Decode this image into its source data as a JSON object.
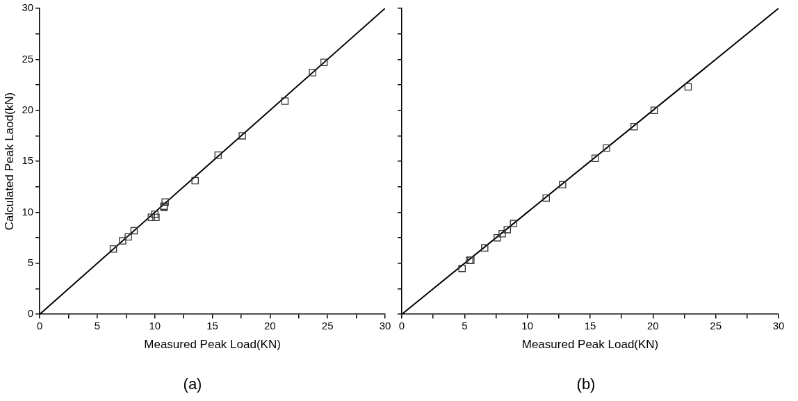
{
  "chart_data": [
    {
      "type": "scatter",
      "title": "(a)",
      "xlabel": "Measured Peak Load(KN)",
      "ylabel": "Calculated Peak Laod(kN)",
      "xlim": [
        0,
        30
      ],
      "ylim": [
        0,
        30
      ],
      "xticks": [
        0,
        {
          "value": 2.5,
          "label": null
        },
        5,
        {
          "value": 7.5,
          "label": null
        },
        10,
        {
          "value": 12.5,
          "label": null
        },
        15,
        {
          "value": 17.5,
          "label": null
        },
        20,
        {
          "value": 22.5,
          "label": null
        },
        25,
        {
          "value": 27.5,
          "label": null
        },
        30
      ],
      "yticks": [
        0,
        {
          "value": 2.5,
          "label": null
        },
        5,
        {
          "value": 7.5,
          "label": null
        },
        10,
        {
          "value": 12.5,
          "label": null
        },
        15,
        {
          "value": 17.5,
          "label": null
        },
        20,
        {
          "value": 22.5,
          "label": null
        },
        25,
        {
          "value": 27.5,
          "label": null
        },
        30
      ],
      "grid": false,
      "legend": false,
      "series": [
        {
          "color": "#333333",
          "marker": "square",
          "x": [
            6.4,
            7.2,
            7.7,
            8.2,
            9.7,
            10,
            10.1,
            10.8,
            10.9,
            10.8,
            13.5,
            15.5,
            17.6,
            21.3,
            23.7,
            24.7
          ],
          "values": [
            6.4,
            7.2,
            7.6,
            8.2,
            9.5,
            9.8,
            9.5,
            10.5,
            11,
            10.6,
            13.1,
            15.6,
            17.5,
            20.9,
            23.7,
            24.7
          ]
        },
        {
          "type": "line",
          "color": "#000000",
          "marker": "none",
          "line_style": "solid",
          "x": [
            0,
            30
          ],
          "values": [
            0,
            30
          ]
        }
      ]
    },
    {
      "type": "scatter",
      "title": "(b)",
      "xlabel": "Measured Peak Load(KN)",
      "xlim": [
        0,
        30
      ],
      "ylim": [
        0,
        30
      ],
      "tick_labels": "x",
      "xticks": [
        0,
        {
          "value": 2.5,
          "label": null
        },
        5,
        {
          "value": 7.5,
          "label": null
        },
        10,
        {
          "value": 12.5,
          "label": null
        },
        15,
        {
          "value": 17.5,
          "label": null
        },
        20,
        {
          "value": 22.5,
          "label": null
        },
        25,
        {
          "value": 27.5,
          "label": null
        },
        30
      ],
      "yticks": [
        0,
        {
          "value": 2.5,
          "label": null
        },
        5,
        {
          "value": 7.5,
          "label": null
        },
        10,
        {
          "value": 12.5,
          "label": null
        },
        15,
        {
          "value": 17.5,
          "label": null
        },
        20,
        {
          "value": 22.5,
          "label": null
        },
        25,
        {
          "value": 27.5,
          "label": null
        },
        30
      ],
      "grid": false,
      "legend": false,
      "series": [
        {
          "color": "#333333",
          "marker": "square",
          "x": [
            4.8,
            5.4,
            5.5,
            6.6,
            7.6,
            8,
            8.4,
            8.9,
            11.5,
            12.8,
            15.4,
            16.3,
            18.5,
            20.1,
            22.8
          ],
          "values": [
            4.5,
            5.3,
            5.3,
            6.5,
            7.5,
            7.9,
            8.3,
            8.9,
            11.4,
            12.7,
            15.3,
            16.3,
            18.4,
            20,
            22.3
          ]
        },
        {
          "type": "line",
          "color": "#000000",
          "marker": "none",
          "line_style": "solid",
          "x": [
            0,
            30
          ],
          "values": [
            0,
            30
          ]
        }
      ]
    }
  ]
}
